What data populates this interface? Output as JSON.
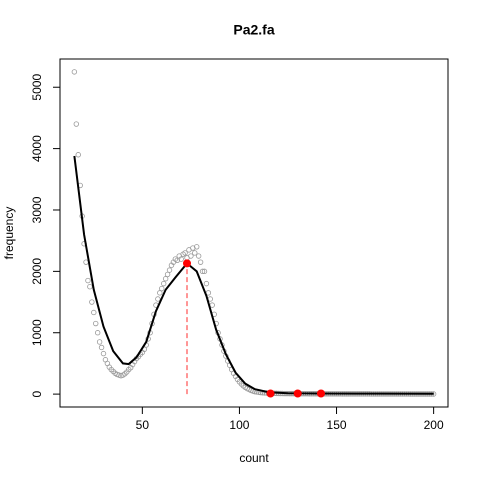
{
  "chart_data": {
    "type": "scatter",
    "title": "Pa2.fa",
    "xlabel": "count",
    "ylabel": "frequency",
    "x": [
      15,
      16,
      17,
      18,
      19,
      20,
      21,
      22,
      23,
      24,
      25,
      26,
      27,
      28,
      29,
      30,
      31,
      32,
      33,
      34,
      35,
      36,
      37,
      38,
      39,
      40,
      41,
      42,
      43,
      44,
      45,
      46,
      47,
      48,
      49,
      50,
      51,
      52,
      53,
      54,
      55,
      56,
      57,
      58,
      59,
      60,
      61,
      62,
      63,
      64,
      65,
      66,
      67,
      68,
      69,
      70,
      71,
      72,
      73,
      74,
      75,
      76,
      77,
      78,
      79,
      80,
      81,
      82,
      83,
      84,
      85,
      86,
      87,
      88,
      89,
      90,
      91,
      92,
      93,
      94,
      95,
      96,
      97,
      98,
      99,
      100,
      101,
      102,
      103,
      104,
      105,
      106,
      107,
      108,
      109,
      110,
      111,
      112,
      113,
      114,
      115,
      116,
      117,
      118,
      119,
      120,
      121,
      122,
      123,
      124,
      125,
      126,
      127,
      128,
      129,
      130,
      131,
      132,
      133,
      134,
      135,
      136,
      137,
      138,
      139,
      140,
      141,
      142,
      143,
      144,
      145,
      146,
      147,
      148,
      149,
      150,
      151,
      152,
      153,
      154,
      155,
      156,
      157,
      158,
      159,
      160,
      161,
      162,
      163,
      164,
      165,
      166,
      167,
      168,
      169,
      170,
      171,
      172,
      173,
      174,
      175,
      176,
      177,
      178,
      179,
      180,
      181,
      182,
      183,
      184,
      185,
      186,
      187,
      188,
      189,
      190,
      191,
      192,
      193,
      194,
      195,
      196,
      197,
      198,
      199,
      200
    ],
    "values": [
      5250,
      4400,
      3900,
      3400,
      2900,
      2450,
      2150,
      1850,
      1750,
      1500,
      1330,
      1150,
      1000,
      850,
      760,
      660,
      560,
      500,
      440,
      400,
      370,
      340,
      320,
      310,
      300,
      310,
      330,
      360,
      400,
      430,
      480,
      530,
      580,
      610,
      650,
      680,
      730,
      800,
      900,
      1000,
      1150,
      1300,
      1450,
      1550,
      1650,
      1720,
      1800,
      1880,
      1950,
      2020,
      2100,
      2150,
      2200,
      2180,
      2250,
      2200,
      2280,
      2300,
      2220,
      2350,
      2250,
      2380,
      2300,
      2400,
      2250,
      2150,
      2000,
      2000,
      1800,
      1650,
      1550,
      1450,
      1300,
      1150,
      1000,
      900,
      800,
      700,
      620,
      540,
      470,
      400,
      340,
      290,
      240,
      200,
      165,
      135,
      110,
      90,
      75,
      60,
      50,
      40,
      35,
      30,
      25,
      22,
      20,
      18,
      16,
      15,
      14,
      13,
      12,
      11,
      10,
      10,
      9,
      9,
      9,
      8,
      8,
      8,
      8,
      8,
      7,
      7,
      7,
      7,
      7,
      6,
      6,
      6,
      6,
      6,
      6,
      6,
      5,
      5,
      5,
      5,
      5,
      5,
      5,
      5,
      5,
      5,
      4,
      4,
      4,
      4,
      4,
      4,
      4,
      4,
      4,
      4,
      4,
      4,
      4,
      4,
      4,
      3,
      3,
      3,
      3,
      3,
      3,
      3,
      3,
      3,
      3,
      3,
      3,
      3,
      3,
      3,
      3,
      3,
      3,
      3,
      3,
      2,
      2,
      2,
      2,
      2,
      2,
      2,
      2,
      2,
      2,
      2,
      2,
      2
    ],
    "color": "#999999",
    "line": {
      "x": [
        15,
        20,
        25,
        30,
        35,
        40,
        43,
        47,
        52,
        57,
        62,
        67,
        73,
        78,
        83,
        88,
        93,
        98,
        103,
        108,
        115,
        125,
        140,
        160,
        200
      ],
      "values": [
        3880,
        2600,
        1700,
        1100,
        700,
        500,
        490,
        600,
        850,
        1350,
        1700,
        1900,
        2130,
        2000,
        1600,
        1050,
        650,
        350,
        170,
        80,
        30,
        15,
        10,
        8,
        5
      ],
      "color": "#000000"
    },
    "peaks": {
      "x": [
        73,
        116,
        130,
        142
      ],
      "values": [
        2130,
        10,
        10,
        10
      ],
      "color": "#ff0000"
    },
    "xlim": [
      7.6,
      207.4
    ],
    "ylim": [
      -210,
      5460
    ],
    "xticks": [
      50,
      100,
      150,
      200
    ],
    "yticks": [
      0,
      1000,
      2000,
      3000,
      4000,
      5000
    ]
  }
}
